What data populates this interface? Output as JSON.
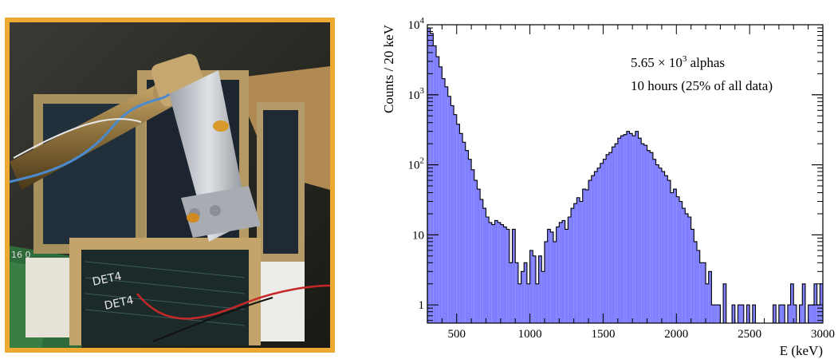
{
  "photo": {
    "subject": "detector-setup-photo",
    "frame_color": "#ecaa33",
    "board_text_1": "DET4",
    "board_text_2": "DET4",
    "board_text_3": "16 0"
  },
  "chart_data": {
    "type": "histogram",
    "xlabel": "E (keV)",
    "ylabel": "Counts / 20 keV",
    "xlim": [
      300,
      3000
    ],
    "ylim": [
      0.55,
      10000
    ],
    "yscale": "log",
    "bin_width": 20,
    "fill_color": "#8080ff",
    "line_color": "#000000",
    "grid": false,
    "x_tick_labels": [
      "500",
      "1000",
      "1500",
      "2000",
      "2500",
      "3000"
    ],
    "y_tick_labels": [
      {
        "value": 1,
        "base": "1",
        "exp": ""
      },
      {
        "value": 10,
        "base": "10",
        "exp": ""
      },
      {
        "value": 100,
        "base": "10",
        "exp": "2"
      },
      {
        "value": 1000,
        "base": "10",
        "exp": "3"
      },
      {
        "value": 10000,
        "base": "10",
        "exp": "4"
      }
    ],
    "annotation": {
      "line1_prefix": "5.65 × 10",
      "line1_exp": "3",
      "line1_suffix": " alphas",
      "line2": "10 hours (25% of all data)"
    },
    "x": [
      300,
      320,
      340,
      360,
      380,
      400,
      420,
      440,
      460,
      480,
      500,
      520,
      540,
      560,
      580,
      600,
      620,
      640,
      660,
      680,
      700,
      720,
      740,
      760,
      780,
      800,
      820,
      840,
      860,
      880,
      900,
      920,
      940,
      960,
      980,
      1000,
      1020,
      1040,
      1060,
      1080,
      1100,
      1120,
      1140,
      1160,
      1180,
      1200,
      1220,
      1240,
      1260,
      1280,
      1300,
      1320,
      1340,
      1360,
      1380,
      1400,
      1420,
      1440,
      1460,
      1480,
      1500,
      1520,
      1540,
      1560,
      1580,
      1600,
      1620,
      1640,
      1660,
      1680,
      1700,
      1720,
      1740,
      1760,
      1780,
      1800,
      1820,
      1840,
      1860,
      1880,
      1900,
      1920,
      1940,
      1960,
      1980,
      2000,
      2020,
      2040,
      2060,
      2080,
      2100,
      2120,
      2140,
      2160,
      2180,
      2200,
      2220,
      2240,
      2260,
      2280,
      2300,
      2320,
      2340,
      2360,
      2380,
      2400,
      2420,
      2440,
      2460,
      2480,
      2500,
      2520,
      2540,
      2560,
      2580,
      2600,
      2620,
      2640,
      2660,
      2680,
      2700,
      2720,
      2740,
      2760,
      2780,
      2800,
      2820,
      2840,
      2860,
      2880,
      2900,
      2920,
      2940,
      2960,
      2980
    ],
    "counts": [
      9000,
      7500,
      5000,
      3500,
      2500,
      1700,
      1300,
      950,
      700,
      520,
      380,
      280,
      210,
      160,
      120,
      85,
      60,
      45,
      32,
      24,
      18,
      15,
      14,
      16,
      15,
      14,
      13,
      12,
      4,
      12,
      4,
      2,
      3,
      4,
      2,
      6,
      5,
      2,
      5,
      3,
      8,
      12,
      11,
      8,
      13,
      15,
      16,
      12,
      18,
      24,
      28,
      34,
      30,
      45,
      44,
      60,
      70,
      80,
      90,
      105,
      120,
      140,
      150,
      180,
      200,
      240,
      260,
      270,
      300,
      280,
      260,
      300,
      240,
      200,
      190,
      160,
      150,
      120,
      100,
      90,
      80,
      70,
      60,
      40,
      45,
      35,
      30,
      24,
      20,
      18,
      12,
      8,
      6,
      4,
      4,
      2,
      3,
      1,
      1,
      1,
      0,
      2,
      0,
      0,
      1,
      0,
      1,
      1,
      0,
      1,
      0,
      1,
      0,
      0,
      0,
      0,
      0,
      0,
      1,
      0,
      1,
      1,
      0,
      1,
      2,
      1,
      0,
      1,
      2,
      0,
      1,
      1,
      2,
      1,
      2
    ]
  }
}
